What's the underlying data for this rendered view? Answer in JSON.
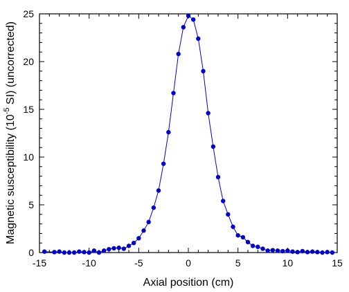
{
  "chart_data": {
    "type": "scatter",
    "xlabel": "Axial position (cm)",
    "ylabel_main": "Magnetic susceptibility (10",
    "ylabel_sup": "-5",
    "ylabel_tail": " SI) (uncorrected)",
    "xlim": [
      -15,
      15
    ],
    "ylim": [
      0,
      25
    ],
    "xticks": [
      -15,
      -10,
      -5,
      0,
      5,
      10,
      15
    ],
    "yticks": [
      0,
      5,
      10,
      15,
      20,
      25
    ],
    "grid": false,
    "marker_color": "#0000cc",
    "line_color": "#0000cc",
    "series": [
      {
        "x": [
          -14.5,
          -13.5,
          -13.0,
          -12.5,
          -12.0,
          -11.5,
          -11.0,
          -10.5,
          -10.0,
          -9.5,
          -9.0,
          -8.5,
          -8.0,
          -7.5,
          -7.0,
          -6.5,
          -6.0,
          -5.5,
          -5.0,
          -4.5,
          -4.0,
          -3.5,
          -3.0,
          -2.5,
          -2.0,
          -1.5,
          -1.0,
          -0.5,
          0.0,
          0.5,
          1.0,
          1.5,
          2.0,
          2.5,
          3.0,
          3.5,
          4.0,
          4.5,
          5.0,
          5.5,
          6.0,
          6.5,
          7.0,
          7.5,
          8.0,
          8.5,
          9.0,
          9.5,
          10.0,
          10.5,
          11.0,
          11.5,
          12.0,
          12.5,
          13.0,
          13.5,
          14.0,
          14.5
        ],
        "values": [
          0.1,
          0.05,
          0.1,
          0.0,
          0.0,
          0.0,
          0.1,
          0.05,
          0.0,
          0.2,
          0.0,
          0.2,
          0.35,
          0.45,
          0.5,
          0.4,
          0.7,
          1.0,
          1.5,
          2.3,
          3.2,
          4.7,
          6.5,
          9.3,
          12.6,
          16.7,
          20.8,
          23.6,
          24.8,
          24.4,
          22.4,
          19.0,
          14.6,
          11.1,
          7.9,
          5.4,
          4.0,
          2.7,
          1.8,
          1.6,
          1.1,
          0.7,
          0.6,
          0.4,
          0.2,
          0.25,
          0.2,
          0.15,
          0.2,
          0.1,
          0.05,
          0.15,
          0.05,
          0.1,
          0.05,
          0.0,
          0.05,
          0.0
        ]
      }
    ]
  }
}
